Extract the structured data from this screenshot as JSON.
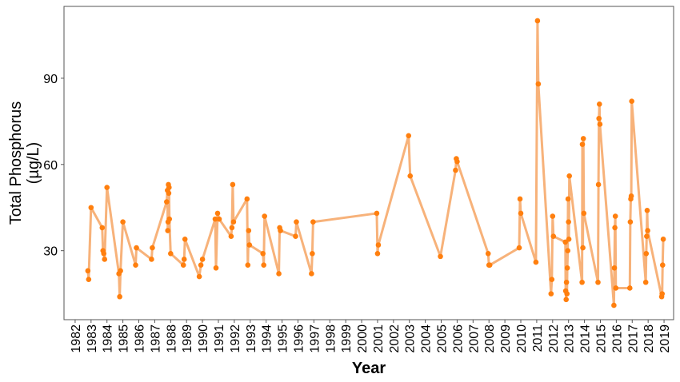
{
  "chart_data": {
    "type": "line",
    "ylabel": [
      "Total Phosphorus",
      "(µg/L)"
    ],
    "xlabel": "Year",
    "x": [
      1982.8,
      1982.85,
      1983.0,
      1983.7,
      1983.75,
      1983.8,
      1983.85,
      1984.0,
      1984.75,
      1984.8,
      1984.85,
      1985.0,
      1985.8,
      1985.85,
      1986.8,
      1986.85,
      1987.75,
      1987.8,
      1987.82,
      1987.84,
      1987.86,
      1987.88,
      1987.9,
      1987.92,
      1988.0,
      1988.8,
      1988.85,
      1988.9,
      1989.8,
      1989.9,
      1990.0,
      1990.8,
      1990.85,
      1990.95,
      1991.05,
      1991.8,
      1991.85,
      1991.9,
      1991.95,
      1992.8,
      1992.85,
      1992.9,
      1992.95,
      1993.8,
      1993.85,
      1993.9,
      1994.8,
      1994.85,
      1994.9,
      1995.85,
      1995.9,
      1996.85,
      1996.9,
      1996.95,
      2000.95,
      2001.0,
      2001.05,
      2002.95,
      2003.05,
      2004.95,
      2005.9,
      2005.95,
      2006.0,
      2007.95,
      2008.0,
      2008.05,
      2009.9,
      2009.95,
      2010.0,
      2010.95,
      2011.05,
      2011.1,
      2011.9,
      2011.95,
      2012.0,
      2012.05,
      2012.8,
      2012.82,
      2012.85,
      2012.87,
      2012.9,
      2012.92,
      2012.95,
      2012.97,
      2013.0,
      2013.02,
      2013.05,
      2013.85,
      2013.87,
      2013.9,
      2013.93,
      2013.96,
      2014.85,
      2014.88,
      2014.91,
      2014.94,
      2014.97,
      2015.85,
      2015.88,
      2015.91,
      2015.94,
      2015.97,
      2016.85,
      2016.88,
      2016.91,
      2016.94,
      2016.97,
      2017.85,
      2017.88,
      2017.91,
      2017.94,
      2017.97,
      2018.85,
      2018.88,
      2018.91,
      2018.95
    ],
    "series": [
      {
        "color": "#ff7f0e",
        "line_color": "#f7b27a",
        "values": [
          23,
          20,
          45,
          38,
          30,
          29,
          27,
          52,
          22,
          14,
          23,
          40,
          25,
          31,
          27,
          31,
          47,
          51,
          37,
          40,
          53,
          50,
          52,
          41,
          29,
          25,
          27,
          34,
          21,
          25,
          27,
          41,
          24,
          43,
          41,
          35,
          38,
          53,
          40,
          48,
          25,
          37,
          32,
          29,
          25,
          42,
          22,
          38,
          37,
          35,
          40,
          22,
          29,
          40,
          43,
          29,
          32,
          70,
          56,
          28,
          58,
          62,
          61,
          29,
          25,
          25,
          31,
          48,
          43,
          26,
          110,
          88,
          15,
          20,
          42,
          35,
          33,
          16,
          13,
          19,
          15,
          24,
          30,
          48,
          40,
          34,
          56,
          19,
          67,
          31,
          69,
          43,
          19,
          53,
          76,
          81,
          74,
          11,
          24,
          38,
          42,
          17,
          17,
          40,
          48,
          49,
          82,
          19,
          29,
          35,
          44,
          37,
          14,
          15,
          25,
          34
        ]
      }
    ],
    "xlim": [
      1981.3,
      2019.6
    ],
    "xticks": [
      1982,
      1983,
      1984,
      1985,
      1986,
      1987,
      1988,
      1989,
      1990,
      1991,
      1992,
      1993,
      1994,
      1995,
      1996,
      1997,
      1998,
      1999,
      2000,
      2001,
      2002,
      2003,
      2004,
      2005,
      2006,
      2007,
      2008,
      2009,
      2010,
      2011,
      2012,
      2013,
      2014,
      2015,
      2016,
      2017,
      2018,
      2019
    ],
    "ylim": [
      6,
      115
    ],
    "yticks": [
      30,
      60,
      90
    ],
    "grid": false
  }
}
